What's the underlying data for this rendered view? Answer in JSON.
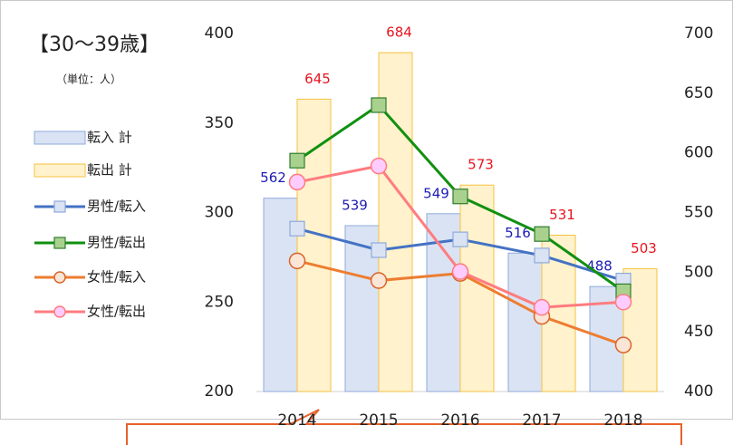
{
  "chart_data": {
    "type": "bar_line",
    "title": "【30～39歳】",
    "subtitle": "（単位：人）",
    "categories": [
      "2014",
      "2015",
      "2016",
      "2017",
      "2018"
    ],
    "ylim": [
      200,
      400
    ],
    "yticks": [
      200,
      250,
      300,
      350,
      400
    ],
    "y2lim": [
      400,
      700
    ],
    "y2ticks": [
      400,
      450,
      500,
      550,
      600,
      650,
      700
    ],
    "grid": false,
    "legend": "left",
    "series": [
      {
        "name": "転入 計",
        "type": "bar",
        "axis": "y2",
        "color": "#dae3f3",
        "edge": "#8faadc",
        "label_color": "#1c1cb4",
        "values": [
          562,
          539,
          549,
          516,
          488
        ]
      },
      {
        "name": "転出 計",
        "type": "bar",
        "axis": "y2",
        "color": "#fff2cc",
        "edge": "#f5c242",
        "label_color": "#e8141e",
        "values": [
          645,
          684,
          573,
          531,
          503
        ]
      },
      {
        "name": "男性/転入",
        "type": "line",
        "axis": "y",
        "color": "#4472c4",
        "marker": "square",
        "marker_fill": "#dae3f3",
        "marker_edge": "#8faadc",
        "values": [
          291,
          279,
          285,
          276,
          262
        ]
      },
      {
        "name": "男性/転出",
        "type": "line",
        "axis": "y",
        "color": "#119011",
        "marker": "square",
        "marker_fill": "#a9d18e",
        "marker_edge": "#2e7d2e",
        "values": [
          329,
          360,
          309,
          288,
          256
        ]
      },
      {
        "name": "女性/転入",
        "type": "line",
        "axis": "y",
        "color": "#ed7d31",
        "marker": "circle",
        "marker_fill": "#fbe5d6",
        "marker_edge": "#d9652a",
        "values": [
          273,
          262,
          266,
          242,
          226
        ]
      },
      {
        "name": "女性/転出",
        "type": "line",
        "axis": "y",
        "color": "#ff7c80",
        "marker": "circle",
        "marker_fill": "#ffccff",
        "marker_edge": "#ff7c80",
        "values": [
          317,
          326,
          267,
          247,
          250
        ]
      }
    ]
  }
}
